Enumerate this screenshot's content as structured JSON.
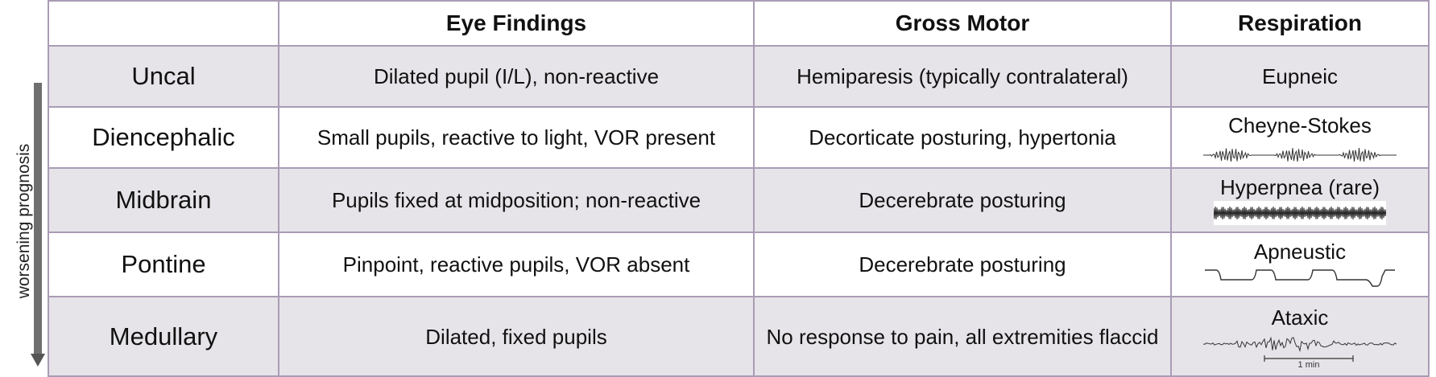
{
  "side_label": "worsening prognosis",
  "columns": [
    "",
    "Eye Findings",
    "Gross Motor",
    "Respiration"
  ],
  "rows": [
    {
      "stage": "Uncal",
      "eye": "Dilated pupil (I/L), non-reactive",
      "motor": "Hemiparesis (typically contralateral)",
      "respiration": "Eupneic"
    },
    {
      "stage": "Diencephalic",
      "eye": "Small pupils, reactive to light, VOR present",
      "motor": "Decorticate posturing, hypertonia",
      "respiration": "Cheyne-Stokes",
      "trace": "cheyne-stokes-waveform"
    },
    {
      "stage": "Midbrain",
      "eye": "Pupils fixed at midposition; non-reactive",
      "motor": "Decerebrate posturing",
      "respiration": "Hyperpnea (rare)",
      "trace": "hyperpnea-waveform"
    },
    {
      "stage": "Pontine",
      "eye": "Pinpoint, reactive pupils, VOR absent",
      "motor": "Decerebrate posturing",
      "respiration": "Apneustic",
      "trace": "apneustic-waveform"
    },
    {
      "stage": "Medullary",
      "eye": "Dilated, fixed pupils",
      "motor": "No response to pain, all extremities flaccid",
      "respiration": "Ataxic",
      "trace": "ataxic-waveform",
      "scale_label": "1 min"
    }
  ],
  "colors": {
    "border": "#a99cb5",
    "shaded_row": "#e6e4e8",
    "arrow": "#6f6f6f"
  }
}
